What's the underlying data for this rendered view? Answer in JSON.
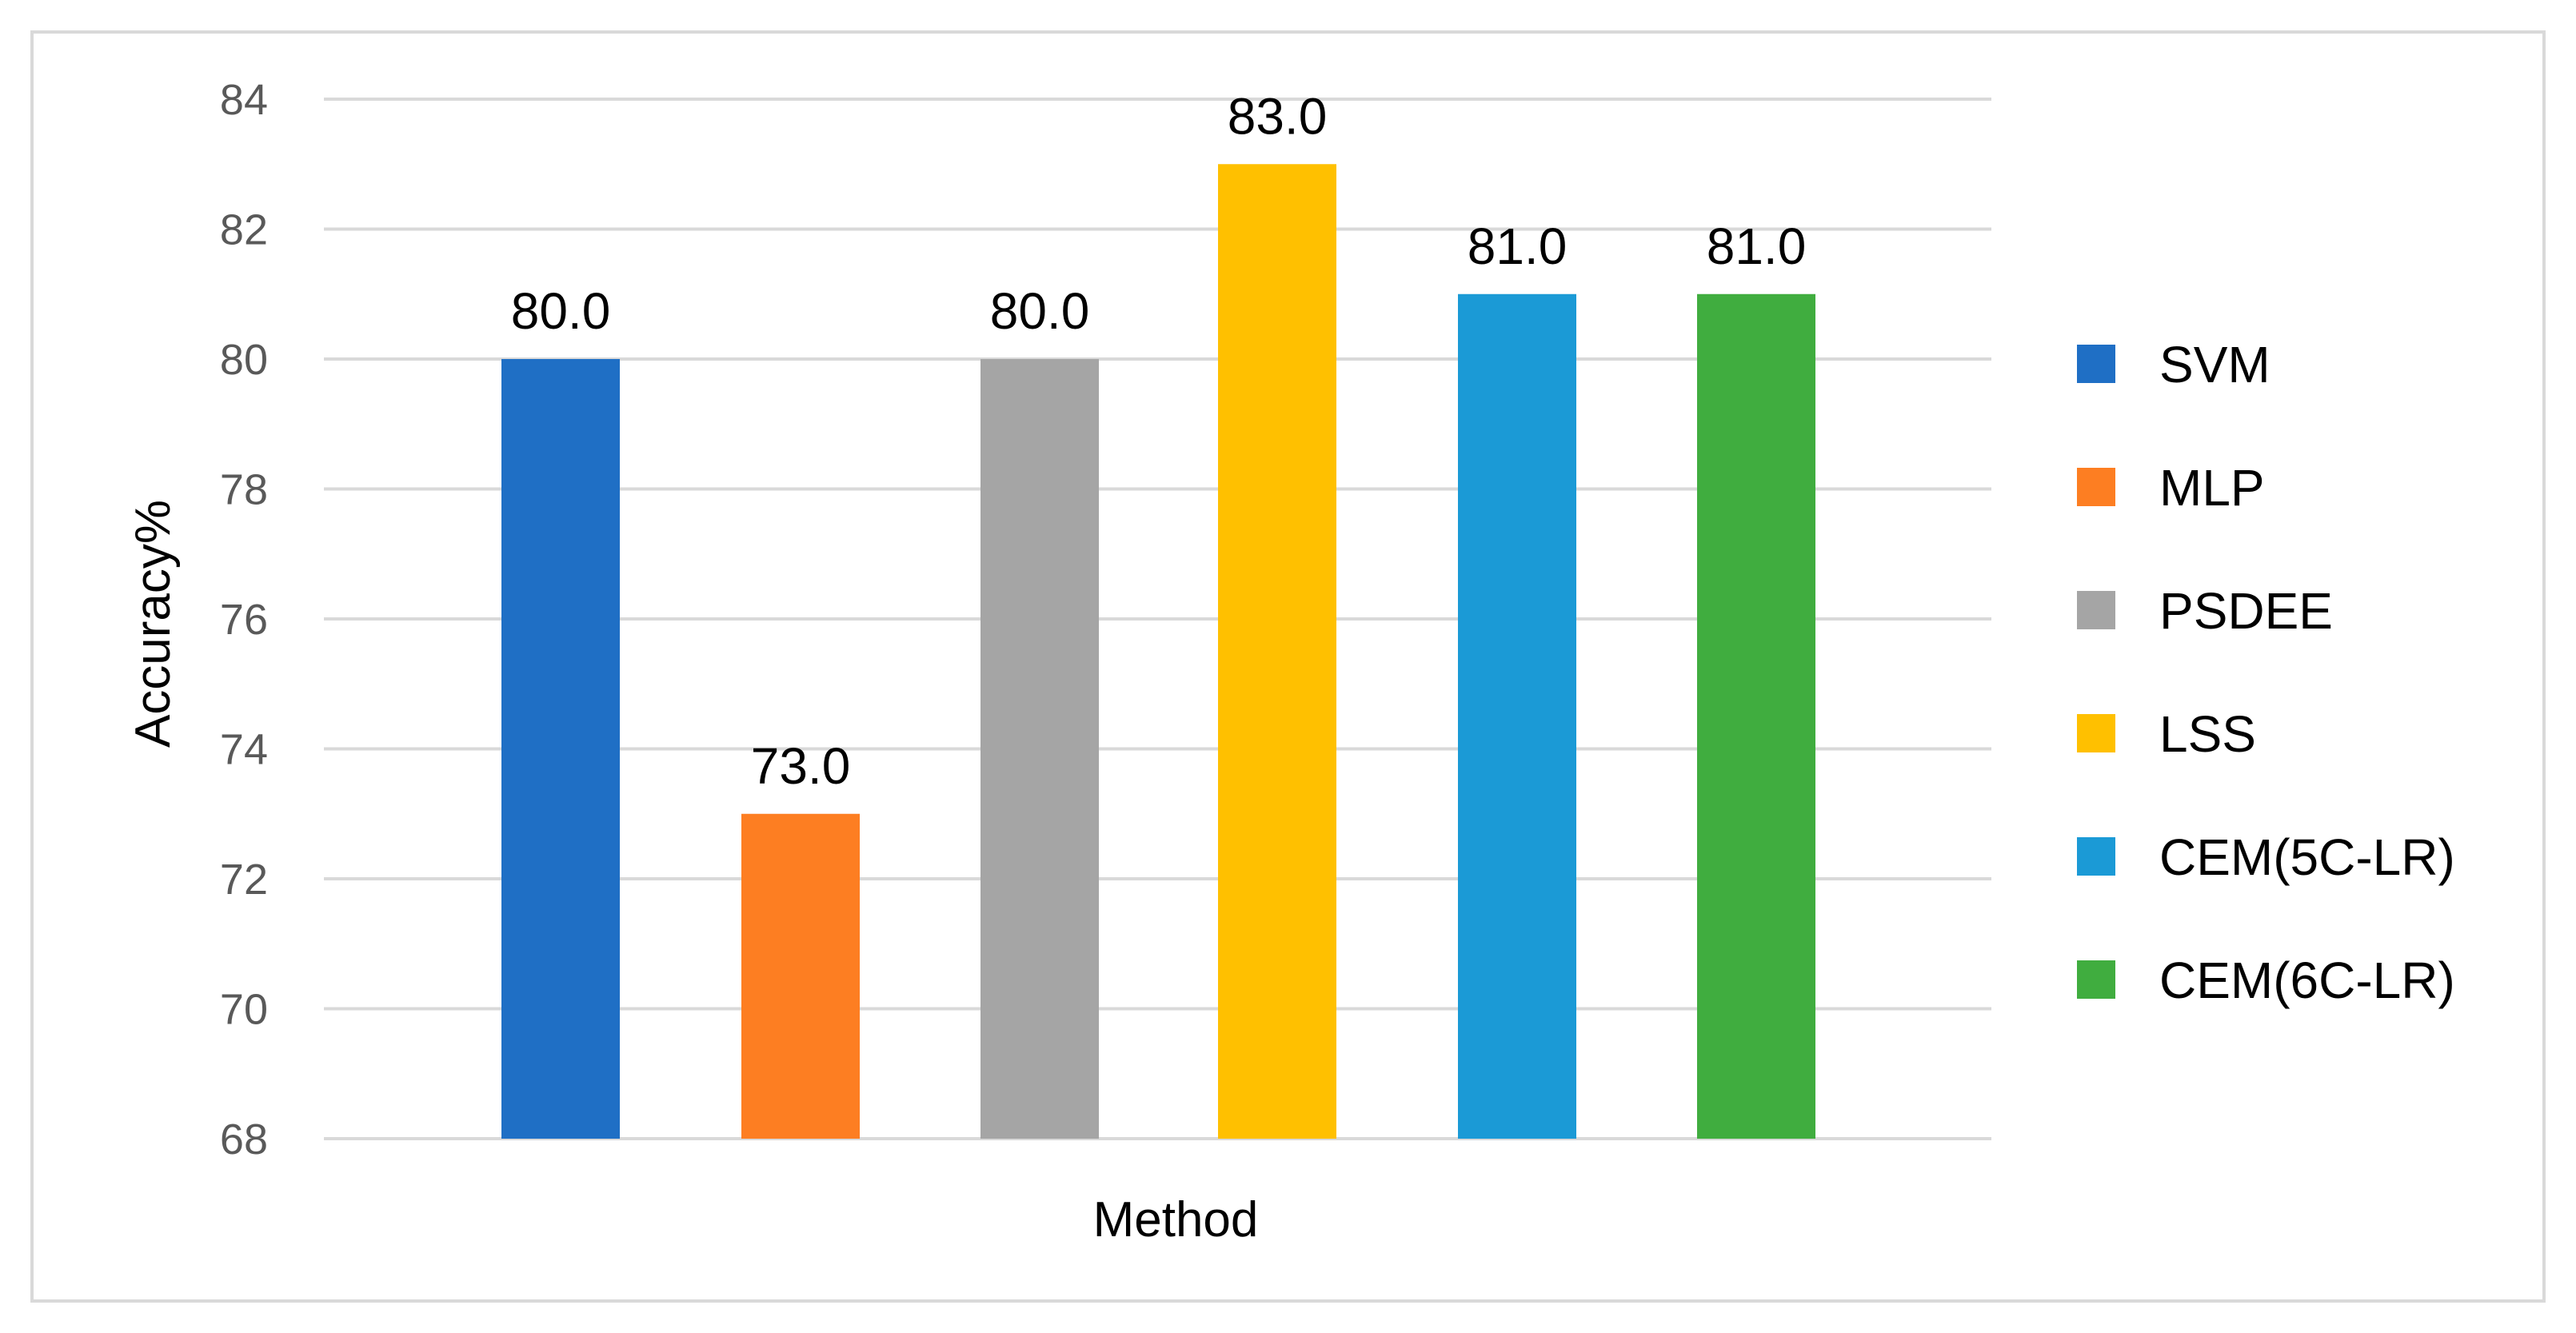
{
  "chart_data": {
    "type": "bar",
    "title": "",
    "xlabel": "Method",
    "ylabel": "Accuracy%",
    "ylim": [
      68,
      84
    ],
    "yticks": [
      68,
      70,
      72,
      74,
      76,
      78,
      80,
      82,
      84
    ],
    "grid": true,
    "legend_position": "right",
    "series": [
      {
        "name": "SVM",
        "value": 80.0,
        "label": "80.0",
        "color": "#1f6fc5"
      },
      {
        "name": "MLP",
        "value": 73.0,
        "label": "73.0",
        "color": "#fd7e22"
      },
      {
        "name": "PSDEE",
        "value": 80.0,
        "label": "80.0",
        "color": "#a5a5a5"
      },
      {
        "name": "LSS",
        "value": 83.0,
        "label": "83.0",
        "color": "#ffc000"
      },
      {
        "name": "CEM(5C-LR)",
        "value": 81.0,
        "label": "81.0",
        "color": "#1b9ad6"
      },
      {
        "name": "CEM(6C-LR)",
        "value": 81.0,
        "label": "81.0",
        "color": "#40ad3f"
      }
    ]
  }
}
